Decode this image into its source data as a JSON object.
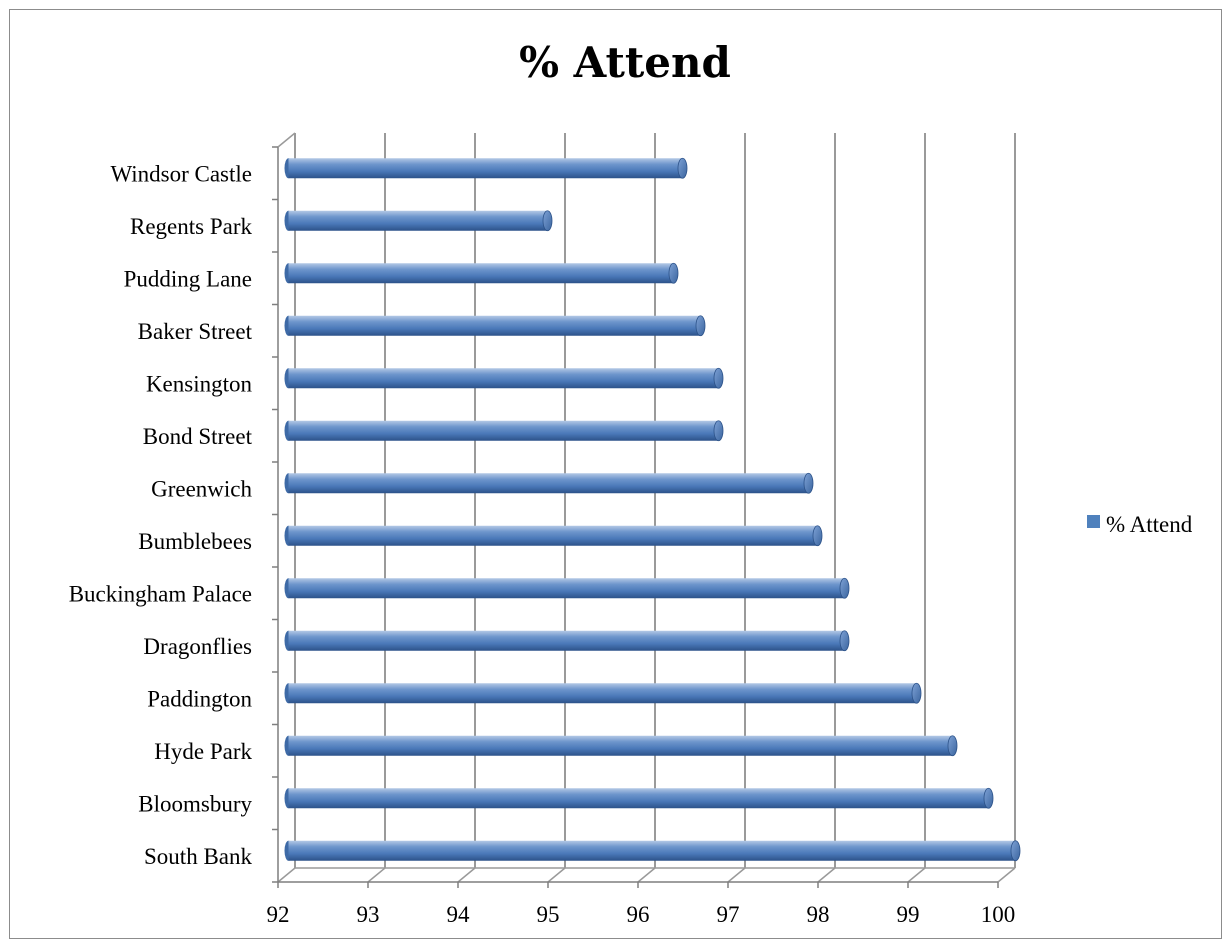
{
  "chart_data": {
    "type": "bar",
    "orientation": "horizontal",
    "title": "% Attend",
    "xlabel": "",
    "ylabel": "",
    "xlim": [
      92,
      100
    ],
    "x_ticks": [
      92,
      93,
      94,
      95,
      96,
      97,
      98,
      99,
      100
    ],
    "categories": [
      "Windsor Castle",
      "Regents Park",
      "Pudding Lane",
      "Baker Street",
      "Kensington",
      "Bond Street",
      "Greenwich",
      "Bumblebees",
      "Buckingham Palace",
      "Dragonflies",
      "Paddington",
      "Hyde Park",
      "Bloomsbury",
      "South Bank"
    ],
    "series": [
      {
        "name": "% Attend",
        "color": "#4f81bd",
        "values": [
          96.4,
          94.9,
          96.3,
          96.6,
          96.8,
          96.8,
          97.8,
          97.9,
          98.2,
          98.2,
          99.0,
          99.4,
          99.8,
          100.1
        ]
      }
    ],
    "grid": "vertical major gridlines",
    "legend": "right",
    "style": "3-D cylinder bars"
  }
}
